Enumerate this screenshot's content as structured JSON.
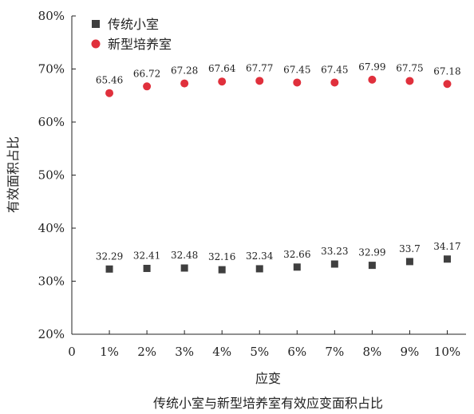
{
  "chart_data": {
    "type": "scatter",
    "title": "传统小室与新型培养室有效应变面积占比",
    "xlabel": "应变",
    "ylabel": "有效面积占比",
    "x_ticks": [
      "0",
      "1%",
      "2%",
      "3%",
      "4%",
      "5%",
      "6%",
      "7%",
      "8%",
      "9%",
      "10%"
    ],
    "x": [
      1,
      2,
      3,
      4,
      5,
      6,
      7,
      8,
      9,
      10
    ],
    "xlim": [
      0,
      10.5
    ],
    "ylim": [
      20,
      80
    ],
    "y_ticks": [
      "20%",
      "30%",
      "40%",
      "50%",
      "60%",
      "70%",
      "80%"
    ],
    "grid": false,
    "legend_position": "top-left",
    "series": [
      {
        "name": "传统小室",
        "marker": "square",
        "color": "#3f3f3f",
        "values": [
          32.29,
          32.41,
          32.48,
          32.16,
          32.34,
          32.66,
          33.23,
          32.99,
          33.7,
          34.17
        ],
        "labels": [
          "32.29",
          "32.41",
          "32.48",
          "32.16",
          "32.34",
          "32.66",
          "33.23",
          "32.99",
          "33.7",
          "34.17"
        ]
      },
      {
        "name": "新型培养室",
        "marker": "circle",
        "color": "#e0303c",
        "values": [
          65.46,
          66.72,
          67.28,
          67.64,
          67.77,
          67.45,
          67.45,
          67.99,
          67.75,
          67.18
        ],
        "labels": [
          "65.46",
          "66.72",
          "67.28",
          "67.64",
          "67.77",
          "67.45",
          "67.45",
          "67.99",
          "67.75",
          "67.18"
        ]
      }
    ]
  }
}
